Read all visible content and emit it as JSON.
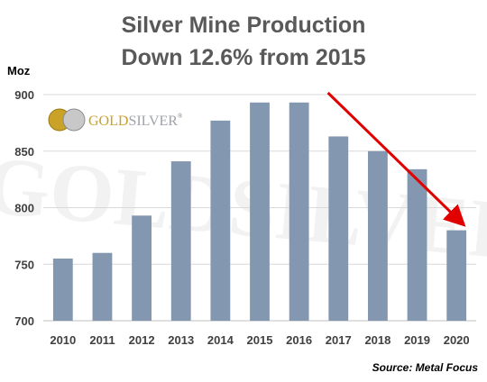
{
  "chart_data": {
    "type": "bar",
    "title": "Silver Mine Production",
    "subtitle": "Down 12.6% from 2015",
    "ylabel": "Moz",
    "ylim": [
      700,
      900
    ],
    "yticks": [
      700,
      750,
      800,
      850,
      900
    ],
    "grid": true,
    "source": "Source: Metal Focus",
    "categories": [
      "2010",
      "2011",
      "2012",
      "2013",
      "2014",
      "2015",
      "2016",
      "2017",
      "2018",
      "2019",
      "2020"
    ],
    "values": [
      755,
      760,
      793,
      841,
      877,
      893,
      893,
      863,
      850,
      834,
      780
    ],
    "bar_color": "#8497b0",
    "trend_arrow": {
      "from_category": "2016",
      "to_category": "2020",
      "color": "#e00000"
    }
  },
  "logo": {
    "text_part1": "GOLD",
    "text_part2": "SILVER",
    "mark": "registered"
  },
  "watermark": {
    "text": "GOLDSILVER"
  }
}
